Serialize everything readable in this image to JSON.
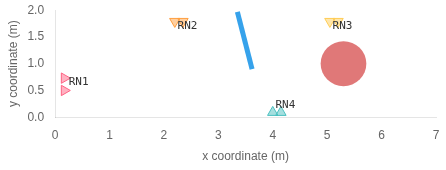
{
  "chart_data": {
    "type": "scatter",
    "xlabel": "x coordinate (m)",
    "ylabel": "y coordinate (m)",
    "xlim": [
      0,
      7
    ],
    "ylim": [
      0,
      2
    ],
    "xticks": [
      0,
      1,
      2,
      3,
      4,
      5,
      6,
      7
    ],
    "yticks": [
      {
        "value": 0,
        "label": "0.0"
      },
      {
        "value": 0.5,
        "label": "0.5"
      },
      {
        "value": 1,
        "label": "1.0"
      },
      {
        "value": 1.5,
        "label": "1.5"
      },
      {
        "value": 2,
        "label": "2.0"
      }
    ],
    "grid": false,
    "circles": [
      {
        "x": 5.3,
        "y": 1.0,
        "r": 0.42,
        "color": "#e07878"
      }
    ],
    "series": [
      {
        "type": "line",
        "x": [
          3.35,
          3.62
        ],
        "values": [
          1.97,
          0.9
        ]
      },
      {
        "type": "scatter",
        "marker": "triangle_right",
        "x": [
          0.17,
          0.17
        ],
        "values": [
          0.73,
          0.5
        ]
      },
      {
        "type": "scatter",
        "marker": "triangle_down",
        "x": [
          2.2,
          2.35
        ],
        "values": [
          1.79,
          1.79
        ]
      },
      {
        "type": "scatter",
        "marker": "triangle_down",
        "x": [
          5.05,
          5.2
        ],
        "values": [
          1.79,
          1.79
        ]
      },
      {
        "type": "scatter",
        "marker": "triangle_up",
        "x": [
          4.0,
          4.15
        ],
        "values": [
          0.09,
          0.09
        ]
      }
    ],
    "annotations": [
      {
        "text": "RN2",
        "x": 2.25,
        "y": 1.65
      },
      {
        "text": "RN3",
        "x": 5.1,
        "y": 1.65
      },
      {
        "text": "RN1",
        "x": 0.25,
        "y": 0.61
      },
      {
        "text": "RN4",
        "x": 4.05,
        "y": 0.18
      }
    ]
  }
}
